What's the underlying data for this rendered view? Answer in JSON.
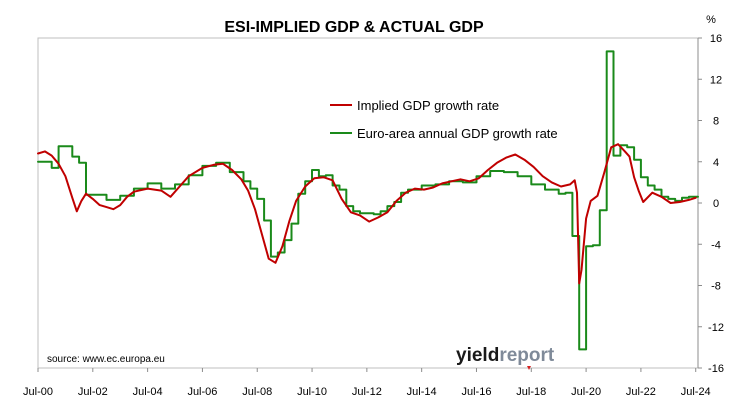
{
  "chart_data": {
    "type": "line",
    "title": "ESI-IMPLIED GDP & ACTUAL GDP",
    "y_unit": "%",
    "ylim": [
      -16,
      16
    ],
    "y_ticks": [
      "16",
      "12",
      "8",
      "4",
      "0",
      "-4",
      "-8",
      "-12",
      "-16"
    ],
    "y_tick_values": [
      16,
      12,
      8,
      4,
      0,
      -4,
      -8,
      -12,
      -16
    ],
    "y_axis_side": "right",
    "x_range": [
      "2000-07",
      "2024-08"
    ],
    "x_ticks": [
      "Jul-00",
      "Jul-02",
      "Jul-04",
      "Jul-06",
      "Jul-08",
      "Jul-10",
      "Jul-12",
      "Jul-14",
      "Jul-16",
      "Jul-18",
      "Jul-20",
      "Jul-22",
      "Jul-24"
    ],
    "x_tick_dates": [
      "2000-07",
      "2002-07",
      "2004-07",
      "2006-07",
      "2008-07",
      "2010-07",
      "2012-07",
      "2014-07",
      "2016-07",
      "2018-07",
      "2020-07",
      "2022-07",
      "2024-07"
    ],
    "grid": false,
    "legend_position": "top-center",
    "series": [
      {
        "name": "Implied GDP growth rate",
        "color": "#c00000",
        "line_style": "smooth",
        "points": [
          [
            "2000-07",
            4.8
          ],
          [
            "2000-10",
            5.0
          ],
          [
            "2001-01",
            4.6
          ],
          [
            "2001-04",
            3.8
          ],
          [
            "2001-07",
            2.6
          ],
          [
            "2001-10",
            0.5
          ],
          [
            "2001-12",
            -0.8
          ],
          [
            "2002-02",
            0.2
          ],
          [
            "2002-04",
            0.9
          ],
          [
            "2002-07",
            0.4
          ],
          [
            "2002-10",
            -0.2
          ],
          [
            "2003-01",
            -0.4
          ],
          [
            "2003-04",
            -0.6
          ],
          [
            "2003-07",
            -0.2
          ],
          [
            "2003-10",
            0.6
          ],
          [
            "2004-01",
            1.1
          ],
          [
            "2004-07",
            1.4
          ],
          [
            "2005-01",
            1.2
          ],
          [
            "2005-05",
            0.6
          ],
          [
            "2005-09",
            1.6
          ],
          [
            "2006-01",
            2.6
          ],
          [
            "2006-07",
            3.4
          ],
          [
            "2006-12",
            3.7
          ],
          [
            "2007-04",
            3.8
          ],
          [
            "2007-08",
            3.2
          ],
          [
            "2007-12",
            2.3
          ],
          [
            "2008-03",
            1.2
          ],
          [
            "2008-06",
            -0.6
          ],
          [
            "2008-09",
            -3.0
          ],
          [
            "2008-12",
            -5.4
          ],
          [
            "2009-03",
            -5.8
          ],
          [
            "2009-06",
            -4.2
          ],
          [
            "2009-09",
            -1.8
          ],
          [
            "2009-12",
            0.2
          ],
          [
            "2010-04",
            1.6
          ],
          [
            "2010-08",
            2.4
          ],
          [
            "2010-12",
            2.5
          ],
          [
            "2011-04",
            2.2
          ],
          [
            "2011-08",
            0.4
          ],
          [
            "2011-12",
            -0.9
          ],
          [
            "2012-04",
            -1.2
          ],
          [
            "2012-08",
            -1.8
          ],
          [
            "2012-12",
            -1.4
          ],
          [
            "2013-04",
            -0.9
          ],
          [
            "2013-08",
            0.2
          ],
          [
            "2013-12",
            1.0
          ],
          [
            "2014-04",
            1.4
          ],
          [
            "2014-08",
            1.3
          ],
          [
            "2014-12",
            1.5
          ],
          [
            "2015-04",
            1.9
          ],
          [
            "2015-08",
            2.1
          ],
          [
            "2015-12",
            2.3
          ],
          [
            "2016-04",
            2.1
          ],
          [
            "2016-08",
            2.4
          ],
          [
            "2016-12",
            3.2
          ],
          [
            "2017-04",
            3.9
          ],
          [
            "2017-08",
            4.4
          ],
          [
            "2017-12",
            4.7
          ],
          [
            "2018-04",
            4.2
          ],
          [
            "2018-08",
            3.5
          ],
          [
            "2018-12",
            2.6
          ],
          [
            "2019-04",
            2.0
          ],
          [
            "2019-08",
            1.6
          ],
          [
            "2019-12",
            1.8
          ],
          [
            "2020-02",
            2.2
          ],
          [
            "2020-03",
            1.0
          ],
          [
            "2020-04",
            -7.8
          ],
          [
            "2020-05",
            -6.5
          ],
          [
            "2020-07",
            -1.5
          ],
          [
            "2020-09",
            0.2
          ],
          [
            "2020-12",
            0.7
          ],
          [
            "2021-03",
            3.0
          ],
          [
            "2021-06",
            5.4
          ],
          [
            "2021-09",
            5.7
          ],
          [
            "2021-12",
            5.0
          ],
          [
            "2022-02",
            4.5
          ],
          [
            "2022-04",
            2.5
          ],
          [
            "2022-06",
            1.2
          ],
          [
            "2022-08",
            0.1
          ],
          [
            "2022-12",
            1.0
          ],
          [
            "2023-04",
            0.6
          ],
          [
            "2023-08",
            0.0
          ],
          [
            "2023-12",
            0.1
          ],
          [
            "2024-04",
            0.3
          ],
          [
            "2024-07",
            0.5
          ]
        ]
      },
      {
        "name": "Euro-area annual GDP growth rate",
        "color": "#1a8a1a",
        "line_style": "step",
        "points": [
          [
            "2000-07",
            4.0
          ],
          [
            "2001-01",
            3.4
          ],
          [
            "2001-04",
            5.5
          ],
          [
            "2001-10",
            4.5
          ],
          [
            "2002-01",
            3.9
          ],
          [
            "2002-04",
            0.8
          ],
          [
            "2002-10",
            0.8
          ],
          [
            "2003-01",
            0.3
          ],
          [
            "2003-07",
            0.7
          ],
          [
            "2004-01",
            1.4
          ],
          [
            "2004-07",
            1.9
          ],
          [
            "2005-01",
            1.4
          ],
          [
            "2005-07",
            1.8
          ],
          [
            "2006-01",
            2.7
          ],
          [
            "2006-07",
            3.6
          ],
          [
            "2007-01",
            3.9
          ],
          [
            "2007-07",
            3.0
          ],
          [
            "2008-01",
            2.1
          ],
          [
            "2008-04",
            1.4
          ],
          [
            "2008-07",
            0.4
          ],
          [
            "2008-10",
            -1.7
          ],
          [
            "2009-01",
            -5.2
          ],
          [
            "2009-04",
            -4.8
          ],
          [
            "2009-07",
            -3.6
          ],
          [
            "2009-10",
            -2.0
          ],
          [
            "2010-01",
            0.9
          ],
          [
            "2010-04",
            2.1
          ],
          [
            "2010-07",
            3.2
          ],
          [
            "2010-10",
            2.6
          ],
          [
            "2011-01",
            2.7
          ],
          [
            "2011-04",
            1.7
          ],
          [
            "2011-07",
            1.3
          ],
          [
            "2011-10",
            -0.3
          ],
          [
            "2012-01",
            -0.8
          ],
          [
            "2012-04",
            -1.0
          ],
          [
            "2012-10",
            -1.1
          ],
          [
            "2013-01",
            -0.8
          ],
          [
            "2013-04",
            -0.3
          ],
          [
            "2013-07",
            0.1
          ],
          [
            "2013-10",
            1.0
          ],
          [
            "2014-01",
            1.3
          ],
          [
            "2014-07",
            1.7
          ],
          [
            "2015-01",
            1.8
          ],
          [
            "2015-07",
            2.1
          ],
          [
            "2016-01",
            2.0
          ],
          [
            "2016-07",
            2.6
          ],
          [
            "2017-01",
            3.1
          ],
          [
            "2017-07",
            3.0
          ],
          [
            "2018-01",
            2.6
          ],
          [
            "2018-07",
            1.8
          ],
          [
            "2019-01",
            1.3
          ],
          [
            "2019-07",
            0.9
          ],
          [
            "2019-10",
            1.0
          ],
          [
            "2020-01",
            -3.2
          ],
          [
            "2020-04",
            -14.2
          ],
          [
            "2020-07",
            -4.2
          ],
          [
            "2020-10",
            -4.1
          ],
          [
            "2021-01",
            -0.7
          ],
          [
            "2021-04",
            14.7
          ],
          [
            "2021-07",
            4.6
          ],
          [
            "2021-10",
            5.6
          ],
          [
            "2022-01",
            5.4
          ],
          [
            "2022-04",
            4.2
          ],
          [
            "2022-07",
            2.5
          ],
          [
            "2022-10",
            1.7
          ],
          [
            "2023-01",
            1.3
          ],
          [
            "2023-04",
            0.6
          ],
          [
            "2023-07",
            0.4
          ],
          [
            "2023-10",
            0.2
          ],
          [
            "2024-01",
            0.5
          ],
          [
            "2024-04",
            0.6
          ],
          [
            "2024-07",
            0.6
          ]
        ]
      }
    ],
    "annotations": {
      "source": "source: www.ec.europa.eu",
      "logo_text": [
        "yield",
        "report"
      ]
    }
  }
}
